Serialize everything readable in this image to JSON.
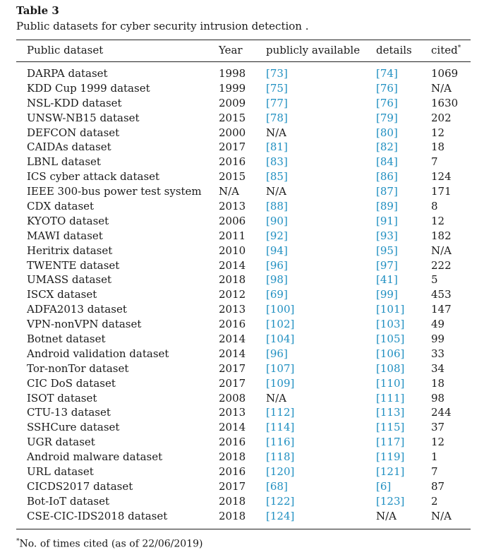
{
  "caption": {
    "label": "Table 3",
    "text": "Public datasets for cyber security intrusion detection ."
  },
  "columns": {
    "dataset": "Public dataset",
    "year": "Year",
    "available": "publicly available",
    "details": "details",
    "cited": "cited",
    "cited_mark": "*"
  },
  "rows": [
    {
      "dataset": "DARPA dataset",
      "year": "1998",
      "available": "[73]",
      "details": "[74]",
      "cited": "1069"
    },
    {
      "dataset": "KDD Cup 1999 dataset",
      "year": "1999",
      "available": "[75]",
      "details": "[76]",
      "cited": "N/A"
    },
    {
      "dataset": "NSL-KDD dataset",
      "year": "2009",
      "available": "[77]",
      "details": "[76]",
      "cited": "1630"
    },
    {
      "dataset": "UNSW-NB15 dataset",
      "year": "2015",
      "available": "[78]",
      "details": "[79]",
      "cited": "202"
    },
    {
      "dataset": "DEFCON dataset",
      "year": "2000",
      "available": "N/A",
      "details": "[80]",
      "cited": "12"
    },
    {
      "dataset": "CAIDAs dataset",
      "year": "2017",
      "available": "[81]",
      "details": "[82]",
      "cited": "18"
    },
    {
      "dataset": "LBNL dataset",
      "year": "2016",
      "available": "[83]",
      "details": "[84]",
      "cited": "7"
    },
    {
      "dataset": "ICS cyber attack dataset",
      "year": "2015",
      "available": "[85]",
      "details": "[86]",
      "cited": "124"
    },
    {
      "dataset": "IEEE 300-bus power test system",
      "year": "N/A",
      "available": "N/A",
      "details": "[87]",
      "cited": "171"
    },
    {
      "dataset": "CDX dataset",
      "year": "2013",
      "available": "[88]",
      "details": "[89]",
      "cited": "8"
    },
    {
      "dataset": "KYOTO dataset",
      "year": "2006",
      "available": "[90]",
      "details": "[91]",
      "cited": "12"
    },
    {
      "dataset": "MAWI dataset",
      "year": "2011",
      "available": "[92]",
      "details": "[93]",
      "cited": "182"
    },
    {
      "dataset": "Heritrix dataset",
      "year": "2010",
      "available": "[94]",
      "details": "[95]",
      "cited": "N/A"
    },
    {
      "dataset": "TWENTE dataset",
      "year": "2014",
      "available": "[96]",
      "details": "[97]",
      "cited": "222"
    },
    {
      "dataset": "UMASS dataset",
      "year": "2018",
      "available": "[98]",
      "details": "[41]",
      "cited": "5"
    },
    {
      "dataset": "ISCX dataset",
      "year": "2012",
      "available": "[69]",
      "details": "[99]",
      "cited": "453"
    },
    {
      "dataset": "ADFA2013 dataset",
      "year": "2013",
      "available": "[100]",
      "details": "[101]",
      "cited": "147"
    },
    {
      "dataset": "VPN-nonVPN dataset",
      "year": "2016",
      "available": "[102]",
      "details": "[103]",
      "cited": "49"
    },
    {
      "dataset": "Botnet dataset",
      "year": "2014",
      "available": "[104]",
      "details": "[105]",
      "cited": "99"
    },
    {
      "dataset": "Android validation dataset",
      "year": "2014",
      "available": "[96]",
      "details": "[106]",
      "cited": "33"
    },
    {
      "dataset": "Tor-nonTor dataset",
      "year": "2017",
      "available": "[107]",
      "details": "[108]",
      "cited": "34"
    },
    {
      "dataset": "CIC DoS dataset",
      "year": "2017",
      "available": "[109]",
      "details": "[110]",
      "cited": "18"
    },
    {
      "dataset": "ISOT dataset",
      "year": "2008",
      "available": "N/A",
      "details": "[111]",
      "cited": "98"
    },
    {
      "dataset": "CTU-13 dataset",
      "year": "2013",
      "available": "[112]",
      "details": "[113]",
      "cited": "244"
    },
    {
      "dataset": "SSHCure dataset",
      "year": "2014",
      "available": "[114]",
      "details": "[115]",
      "cited": "37"
    },
    {
      "dataset": "UGR dataset",
      "year": "2016",
      "available": "[116]",
      "details": "[117]",
      "cited": "12"
    },
    {
      "dataset": "Android malware dataset",
      "year": "2018",
      "available": "[118]",
      "details": "[119]",
      "cited": "1"
    },
    {
      "dataset": "URL dataset",
      "year": "2016",
      "available": "[120]",
      "details": "[121]",
      "cited": "7"
    },
    {
      "dataset": "CICDS2017 dataset",
      "year": "2017",
      "available": "[68]",
      "details": "[6]",
      "cited": "87"
    },
    {
      "dataset": "Bot-IoT dataset",
      "year": "2018",
      "available": "[122]",
      "details": "[123]",
      "cited": "2"
    },
    {
      "dataset": "CSE-CIC-IDS2018 dataset",
      "year": "2018",
      "available": "[124]",
      "details": "N/A",
      "cited": "N/A"
    }
  ],
  "footnote": {
    "mark": "*",
    "text": "No. of times cited (as of 22/06/2019)"
  },
  "colors": {
    "reference_link": "#1f8fc1",
    "text": "#1a1a1a"
  }
}
